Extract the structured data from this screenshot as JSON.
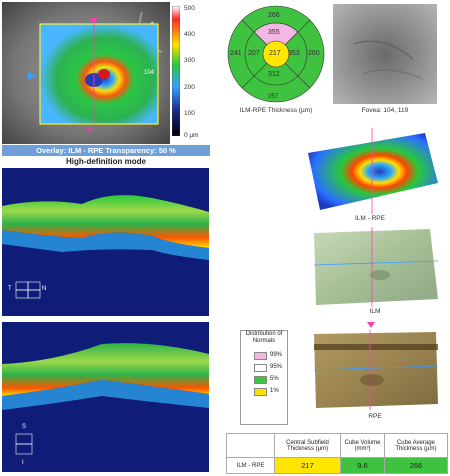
{
  "fundus": {
    "scale_ticks": [
      "500",
      "400",
      "300",
      "200",
      "100",
      "0 µm"
    ],
    "marker_left": "00",
    "marker_right": "104",
    "caption": "Overlay: ILM - RPE  Transparency: 50 %",
    "mode": "High-definition mode",
    "scale_colors": [
      "#ffffff",
      "#ff2a2a",
      "#ffe000",
      "#29c83a",
      "#3aa0ff",
      "#1c2a8c",
      "#000000"
    ]
  },
  "etdrs": {
    "values": [
      "266",
      "355",
      "241",
      "207",
      "217",
      "353",
      "260",
      "312",
      "257"
    ],
    "caption": "ILM-RPE Thickness (µm)"
  },
  "svp": {
    "caption": "Fovea: 104, 119"
  },
  "maps_3d": [
    {
      "caption": "ILM - RPE"
    },
    {
      "caption": "ILM"
    },
    {
      "caption": "RPE"
    }
  ],
  "bscan_top": {
    "orientation_t": "T",
    "orientation_n": "N"
  },
  "bscan_bottom": {
    "orientation_s": "S",
    "orientation_i": "I"
  },
  "legend": {
    "title": "Distribution of Normals",
    "items": [
      {
        "label": "99%",
        "color": "#f4b6e2"
      },
      {
        "label": "95%",
        "color": "#ffffff"
      },
      {
        "label": "5%",
        "color": "#3fc23f"
      },
      {
        "label": "1%",
        "color": "#ffde00"
      }
    ]
  },
  "table": {
    "headers": [
      "Central Subfield Thickness (µm)",
      "Cube Volume (mm³)",
      "Cube Average Thickness (µm)"
    ],
    "row_label": "ILM - RPE",
    "values": [
      "217",
      "9.6",
      "266"
    ],
    "value_colors": [
      "#ffe600",
      "#3fc23f",
      "#3fc23f"
    ]
  }
}
